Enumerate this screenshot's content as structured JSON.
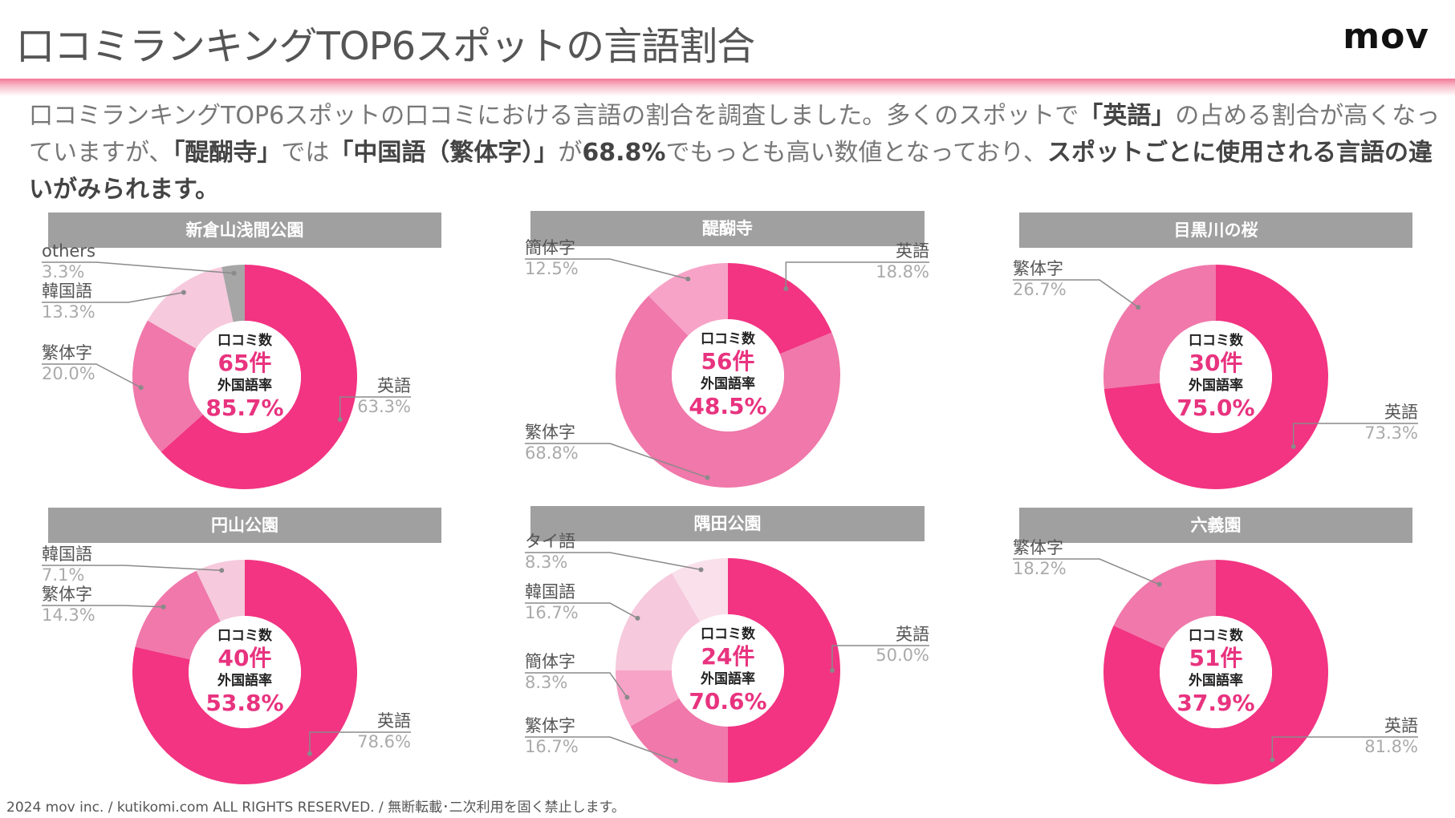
{
  "header": {
    "title": "口コミランキングTOP6スポットの言語割合",
    "logo": "mov"
  },
  "intro": {
    "part1": "口コミランキングTOP6スポットの口コミにおける言語の割合を調査しました。多くのスポットで",
    "bold1": "「英語」",
    "part2": "の占める割合が高くなっていますが、",
    "bold2": "「醍醐寺」",
    "part3": "では",
    "bold3": "「中国語（繁体字）」",
    "part4": "が",
    "bold4": "68.8%",
    "part5": "でもっとも高い数値となっており、",
    "bold5": "スポットごとに使用される言語の違いがみられます。"
  },
  "center_labels": {
    "count_label": "口コミ数",
    "rate_label": "外国語率"
  },
  "colors": {
    "english": "#f23482",
    "traditional": "#f078aa",
    "simplified": "#f7a3c7",
    "korean": "#f6c9dc",
    "thai": "#f9e0ea",
    "others": "#a6a6a6",
    "accent": "#e8337f"
  },
  "chart_data": [
    {
      "type": "pie",
      "title": "新倉山浅間公園",
      "count": "65件",
      "foreign_rate": "85.7%",
      "slices": [
        {
          "name": "英語",
          "value": 63.3,
          "label": "63.3%"
        },
        {
          "name": "繁体字",
          "value": 20.0,
          "label": "20.0%"
        },
        {
          "name": "韓国語",
          "value": 13.3,
          "label": "13.3%"
        },
        {
          "name": "others",
          "value": 3.3,
          "label": "3.3%"
        }
      ]
    },
    {
      "type": "pie",
      "title": "醍醐寺",
      "count": "56件",
      "foreign_rate": "48.5%",
      "slices": [
        {
          "name": "英語",
          "value": 18.8,
          "label": "18.8%"
        },
        {
          "name": "繁体字",
          "value": 68.8,
          "label": "68.8%"
        },
        {
          "name": "簡体字",
          "value": 12.5,
          "label": "12.5%"
        }
      ]
    },
    {
      "type": "pie",
      "title": "目黒川の桜",
      "count": "30件",
      "foreign_rate": "75.0%",
      "slices": [
        {
          "name": "英語",
          "value": 73.3,
          "label": "73.3%"
        },
        {
          "name": "繁体字",
          "value": 26.7,
          "label": "26.7%"
        }
      ]
    },
    {
      "type": "pie",
      "title": "円山公園",
      "count": "40件",
      "foreign_rate": "53.8%",
      "slices": [
        {
          "name": "英語",
          "value": 78.6,
          "label": "78.6%"
        },
        {
          "name": "繁体字",
          "value": 14.3,
          "label": "14.3%"
        },
        {
          "name": "韓国語",
          "value": 7.1,
          "label": "7.1%"
        }
      ]
    },
    {
      "type": "pie",
      "title": "隅田公園",
      "count": "24件",
      "foreign_rate": "70.6%",
      "slices": [
        {
          "name": "英語",
          "value": 50.0,
          "label": "50.0%"
        },
        {
          "name": "繁体字",
          "value": 16.7,
          "label": "16.7%"
        },
        {
          "name": "簡体字",
          "value": 8.3,
          "label": "8.3%"
        },
        {
          "name": "韓国語",
          "value": 16.7,
          "label": "16.7%"
        },
        {
          "name": "タイ語",
          "value": 8.3,
          "label": "8.3%"
        }
      ]
    },
    {
      "type": "pie",
      "title": "六義園",
      "count": "51件",
      "foreign_rate": "37.9%",
      "slices": [
        {
          "name": "英語",
          "value": 81.8,
          "label": "81.8%"
        },
        {
          "name": "繁体字",
          "value": 18.2,
          "label": "18.2%"
        }
      ]
    }
  ],
  "footer": {
    "text": "2024 mov inc. / kutikomi.com ALL RIGHTS RESERVED. / 無断転載･二次利用を固く禁止します。"
  }
}
